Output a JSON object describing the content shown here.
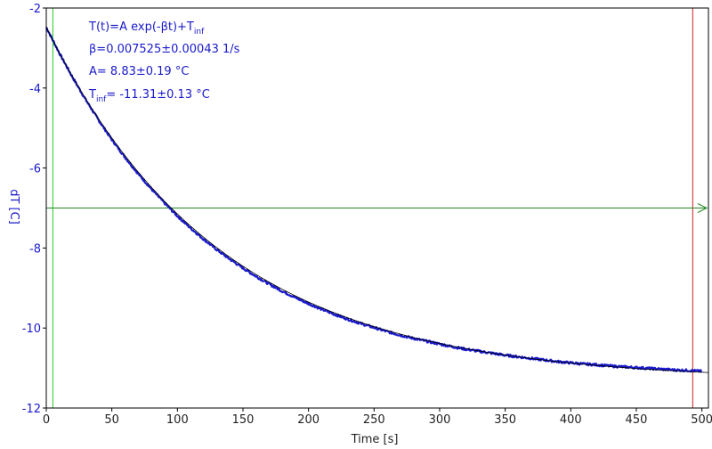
{
  "chart_data": {
    "type": "line",
    "xlabel": "Time [s]",
    "ylabel": "dT [C]",
    "xlim": [
      0,
      505
    ],
    "ylim": [
      -12,
      -2
    ],
    "x_ticks": [
      0,
      50,
      100,
      150,
      200,
      250,
      300,
      350,
      400,
      450,
      500
    ],
    "y_ticks": [
      -2,
      -4,
      -6,
      -8,
      -10,
      -12
    ],
    "grid": false,
    "fit": {
      "A": 8.83,
      "beta": 0.007525,
      "T_inf": -11.31
    },
    "series": [
      {
        "x": [
          0,
          10,
          20,
          30,
          40,
          50,
          60,
          70,
          80,
          90,
          100,
          110,
          120,
          130,
          140,
          150,
          160,
          170,
          180,
          190,
          200,
          210,
          220,
          230,
          240,
          250,
          260,
          270,
          280,
          290,
          300,
          310,
          320,
          330,
          340,
          350,
          360,
          370,
          380,
          390,
          400,
          410,
          420,
          430,
          440,
          450,
          460,
          470,
          480,
          490,
          500
        ],
        "y": [
          -2.48,
          -3.13,
          -3.73,
          -4.29,
          -4.81,
          -5.29,
          -5.73,
          -6.14,
          -6.52,
          -6.87,
          -7.2,
          -7.5,
          -7.78,
          -8.04,
          -8.28,
          -8.5,
          -8.71,
          -8.9,
          -9.08,
          -9.24,
          -9.39,
          -9.53,
          -9.66,
          -9.78,
          -9.89,
          -9.99,
          -10.09,
          -10.18,
          -10.26,
          -10.33,
          -10.4,
          -10.47,
          -10.53,
          -10.58,
          -10.63,
          -10.68,
          -10.72,
          -10.76,
          -10.8,
          -10.84,
          -10.87,
          -10.9,
          -10.92,
          -10.95,
          -10.97,
          -10.99,
          -11.01,
          -11.03,
          -11.05,
          -11.06,
          -11.08
        ]
      }
    ],
    "markers": {
      "x_lines": [
        5,
        493
      ],
      "y_line": -7
    },
    "annotations": {
      "line1_main": "T(t)=A exp(-βt)+T",
      "line1_sub": "inf",
      "line2": "β=0.007525±0.00043 1/s",
      "line3": "A= 8.83±0.19 °C",
      "line4_main": "T",
      "line4_sub": "inf",
      "line4_rest": "= -11.31±0.13 °C"
    },
    "colors": {
      "data": "#1a1acc",
      "fit": "#000000",
      "axis_text": "#1a1acc",
      "frame": "#000000",
      "marker_left": "#22cc22",
      "marker_right": "#cc2222",
      "h_line": "#228822"
    }
  }
}
